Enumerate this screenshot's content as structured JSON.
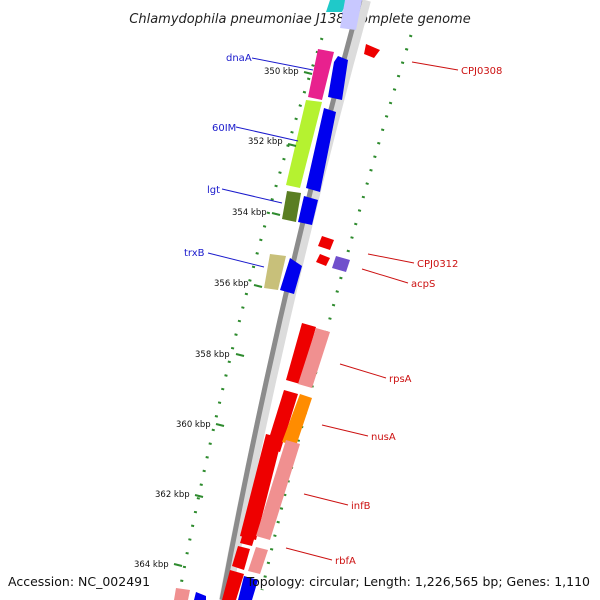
{
  "title": "Chlamydophila pneumoniae J138, complete genome",
  "footer": {
    "accession": "Accession: NC_002491",
    "summary": "Topology: circular; Length: 1,226,565 bp; Genes: 1,110"
  },
  "ticks": [
    "350 kbp",
    "352 kbp",
    "354 kbp",
    "356 kbp",
    "358 kbp",
    "360 kbp",
    "362 kbp",
    "364 kbp"
  ],
  "labels_left": [
    {
      "text": "dnaA",
      "color": "#1a1acc"
    },
    {
      "text": "60IM",
      "color": "#1a1acc"
    },
    {
      "text": "lgt",
      "color": "#1a1acc"
    },
    {
      "text": "trxB",
      "color": "#1a1acc"
    }
  ],
  "labels_right": [
    {
      "text": "CPJ0308",
      "color": "#cc1111"
    },
    {
      "text": "CPJ0312",
      "color": "#cc1111"
    },
    {
      "text": "acpS",
      "color": "#cc1111"
    },
    {
      "text": "rpsA",
      "color": "#cc1111"
    },
    {
      "text": "nusA",
      "color": "#cc1111"
    },
    {
      "text": "infB",
      "color": "#cc1111"
    },
    {
      "text": "rbfA",
      "color": "#cc1111"
    }
  ],
  "colors": {
    "backbone": "#8c8c8c",
    "dots": "#2e8b2e",
    "forward_arrow": "#0000ee",
    "reverse_arrow": "#ee0000",
    "left_label": "#1a1acc",
    "right_label": "#cc1111"
  }
}
